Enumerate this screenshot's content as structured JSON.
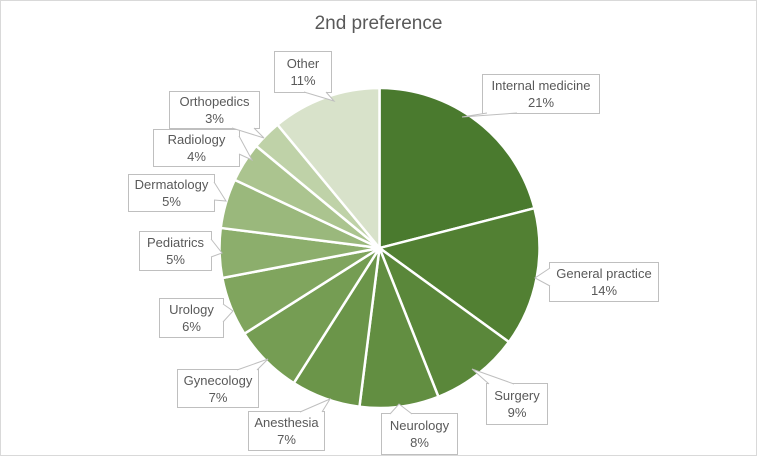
{
  "chart_data": {
    "type": "pie",
    "title": "2nd preference",
    "categories": [
      "Internal medicine",
      "General practice",
      "Surgery",
      "Neurology",
      "Anesthesia",
      "Gynecology",
      "Urology",
      "Pediatrics",
      "Dermatology",
      "Radiology",
      "Orthopedics",
      "Other"
    ],
    "values": [
      21,
      14,
      9,
      8,
      7,
      7,
      6,
      5,
      5,
      4,
      3,
      11
    ],
    "display_values": [
      "21%",
      "14%",
      "9%",
      "8%",
      "7%",
      "7%",
      "6%",
      "5%",
      "5%",
      "4%",
      "3%",
      "11%"
    ],
    "unit": "percent",
    "total": 100,
    "start_angle_deg": 0,
    "direction": "clockwise",
    "colors": [
      "#4a7a2e",
      "#528033",
      "#5a873a",
      "#628e41",
      "#6b9549",
      "#759d53",
      "#80a55e",
      "#8cae6c",
      "#9ab87c",
      "#abc48f",
      "#bfd2a8",
      "#d8e2ca"
    ],
    "slice_gap_color": "#ffffff",
    "label_style": {
      "mode": "callout-with-leader",
      "background": "#ffffff",
      "border_color": "#bfbfbf",
      "text_color": "#595959"
    },
    "title_color": "#595959",
    "legend": "none",
    "frame_border_color": "#d9d9d9"
  }
}
